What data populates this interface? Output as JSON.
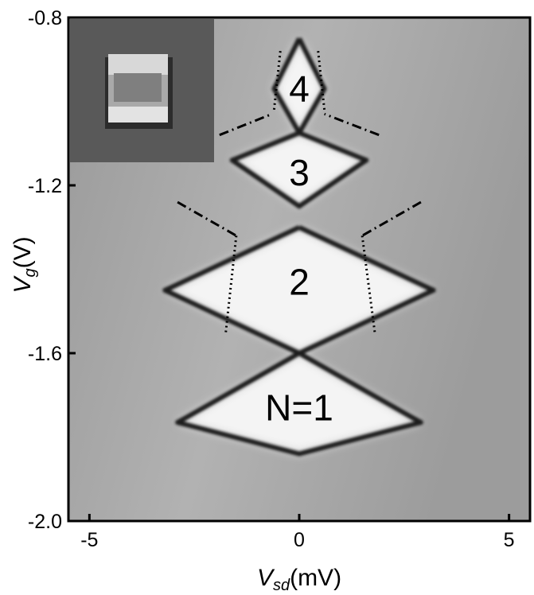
{
  "chart_data": {
    "type": "heatmap",
    "title": "",
    "xlabel": {
      "symbol": "V",
      "subscript": "sd",
      "unit": "(mV)"
    },
    "ylabel": {
      "symbol": "V",
      "subscript": "g",
      "unit": "(V)"
    },
    "xlim": [
      -5.5,
      5.5
    ],
    "ylim": [
      -2.0,
      -0.8
    ],
    "x_ticks": [
      {
        "value": -5,
        "label": "-5"
      },
      {
        "value": 0,
        "label": "0"
      },
      {
        "value": 5,
        "label": "5"
      }
    ],
    "y_ticks": [
      {
        "value": -0.8,
        "label": "-0.8"
      },
      {
        "value": -1.2,
        "label": "-1.2"
      },
      {
        "value": -1.6,
        "label": "-1.6"
      },
      {
        "value": -2.0,
        "label": "-2.0"
      }
    ],
    "colorscale": "grayscale",
    "inset": "scanning electron micrograph of a square pillar device",
    "regions": [
      {
        "label": "4",
        "x": 0.0,
        "y": -0.97
      },
      {
        "label": "3",
        "x": 0.0,
        "y": -1.17
      },
      {
        "label": "2",
        "x": 0.0,
        "y": -1.43
      },
      {
        "label": "N=1",
        "x": 0.0,
        "y": -1.73
      }
    ],
    "diamond_edges": [
      {
        "x": [
          0,
          2.9,
          0,
          -2.9,
          0
        ],
        "y": [
          -1.6,
          -1.765,
          -1.84,
          -1.765,
          -1.6
        ]
      },
      {
        "x": [
          0,
          3.2,
          0,
          -3.2,
          0
        ],
        "y": [
          -1.3,
          -1.45,
          -1.6,
          -1.45,
          -1.3
        ]
      },
      {
        "x": [
          0,
          1.6,
          0,
          -1.6,
          0
        ],
        "y": [
          -1.075,
          -1.14,
          -1.25,
          -1.14,
          -1.075
        ]
      },
      {
        "x": [
          0,
          0.6,
          0,
          -0.6,
          0
        ],
        "y": [
          -0.85,
          -0.97,
          -1.075,
          -0.97,
          -0.85
        ]
      }
    ],
    "dotted_guides": [
      {
        "x": [
          -1.5,
          -1.75
        ],
        "y": [
          -1.32,
          -1.55
        ]
      },
      {
        "x": [
          1.5,
          1.8
        ],
        "y": [
          -1.32,
          -1.55
        ]
      },
      {
        "x": [
          -0.45,
          -0.6
        ],
        "y": [
          -0.88,
          -1.02
        ]
      },
      {
        "x": [
          0.45,
          0.6
        ],
        "y": [
          -0.88,
          -1.02
        ]
      }
    ],
    "dashdot_guides": [
      {
        "x": [
          -2.9,
          -1.5
        ],
        "y": [
          -1.24,
          -1.32
        ]
      },
      {
        "x": [
          2.9,
          1.5
        ],
        "y": [
          -1.24,
          -1.32
        ]
      },
      {
        "x": [
          -1.9,
          -0.65
        ],
        "y": [
          -1.08,
          -1.03
        ]
      },
      {
        "x": [
          1.9,
          0.6
        ],
        "y": [
          -1.08,
          -1.03
        ]
      }
    ]
  }
}
